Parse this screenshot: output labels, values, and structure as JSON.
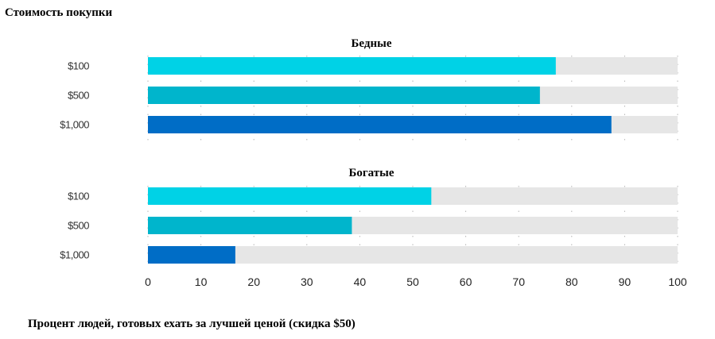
{
  "figure": {
    "ylabel": "Стоимость покупки",
    "xlabel": "Процент людей, готовых ехать за лучшей ценой (скидка $50)"
  },
  "chart_data": [
    {
      "type": "bar",
      "orientation": "horizontal",
      "title": "Бедные",
      "categories": [
        "$100",
        "$500",
        "$1,000"
      ],
      "values": [
        77,
        74,
        87.5
      ],
      "colors": [
        "#00d2e6",
        "#00b5cc",
        "#006dc6"
      ],
      "xlim": [
        0,
        100
      ],
      "background_bar_color": "#e6e6e6"
    },
    {
      "type": "bar",
      "orientation": "horizontal",
      "title": "Богатые",
      "categories": [
        "$100",
        "$500",
        "$1,000"
      ],
      "values": [
        53.5,
        38.5,
        16.5
      ],
      "colors": [
        "#00d2e6",
        "#00b5cc",
        "#006dc6"
      ],
      "xlim": [
        0,
        100
      ],
      "background_bar_color": "#e6e6e6",
      "xticks": [
        "0",
        "10",
        "20",
        "30",
        "40",
        "50",
        "60",
        "70",
        "80",
        "90",
        "100"
      ]
    }
  ],
  "grid": "vertical dotted"
}
